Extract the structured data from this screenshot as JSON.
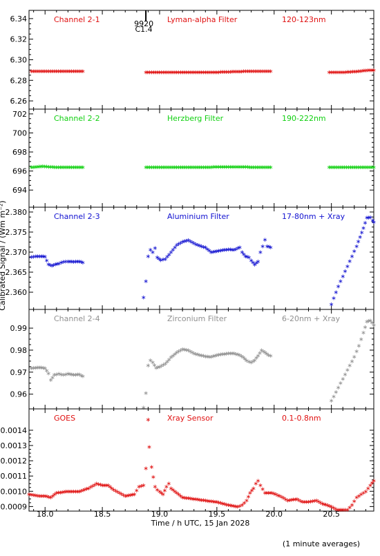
{
  "chart_data": {
    "type": "scatter",
    "xlabel": "Time / h UTC, 15 Jan 2028",
    "ylabel": "Calibrated Signal / (Wm m⁻²)",
    "footnote": "(1 minute averages)",
    "xlim": [
      17.86,
      20.87
    ],
    "xticks": [
      18.0,
      18.5,
      19.0,
      19.5,
      20.0,
      20.5
    ],
    "xtick_labels": [
      "18.0",
      "18.5",
      "19.0",
      "19.5",
      "20.0",
      "20.5"
    ],
    "marker": {
      "x": 18.88,
      "label_top": "9920",
      "label_bottom": "C1.4"
    },
    "panels": [
      {
        "name": "Channel 2-1",
        "filter": "Lyman-alpha Filter",
        "band": "120-123nm",
        "color": "#e01010",
        "ylim": [
          6.252,
          6.348
        ],
        "yticks": [
          6.26,
          6.28,
          6.3,
          6.32,
          6.34
        ],
        "ytick_labels": [
          "6.26",
          "6.28",
          "6.30",
          "6.32",
          "6.34"
        ],
        "segments": [
          {
            "points": [
              [
                17.88,
                6.289
              ],
              [
                18.1,
                6.289
              ],
              [
                18.33,
                6.289
              ]
            ]
          },
          {
            "points": [
              [
                18.88,
                6.288
              ],
              [
                19.2,
                6.288
              ],
              [
                19.5,
                6.288
              ],
              [
                19.8,
                6.289
              ],
              [
                19.97,
                6.289
              ]
            ]
          },
          {
            "points": [
              [
                20.48,
                6.288
              ],
              [
                20.62,
                6.288
              ],
              [
                20.75,
                6.289
              ],
              [
                20.82,
                6.29
              ],
              [
                20.87,
                6.29
              ]
            ]
          }
        ]
      },
      {
        "name": "Channel 2-2",
        "filter": "Herzberg Filter",
        "band": "190-222nm",
        "color": "#10d010",
        "ylim": [
          692.2,
          702.5
        ],
        "yticks": [
          694,
          696,
          698,
          700,
          702
        ],
        "ytick_labels": [
          "694",
          "696",
          "698",
          "700",
          "702"
        ],
        "segments": [
          {
            "points": [
              [
                17.88,
                696.4
              ],
              [
                17.98,
                696.5
              ],
              [
                18.1,
                696.4
              ],
              [
                18.33,
                696.4
              ]
            ]
          },
          {
            "points": [
              [
                18.88,
                696.4
              ],
              [
                19.3,
                696.4
              ],
              [
                19.6,
                696.45
              ],
              [
                19.97,
                696.4
              ]
            ]
          },
          {
            "points": [
              [
                20.48,
                696.4
              ],
              [
                20.87,
                696.4
              ]
            ]
          }
        ]
      },
      {
        "name": "Channel 2-3",
        "filter": "Aluminium Filter",
        "band": "17-80nm + Xray",
        "color": "#1010d0",
        "ylim": [
          2.3557,
          2.3812
        ],
        "yticks": [
          2.36,
          2.365,
          2.37,
          2.375,
          2.38
        ],
        "ytick_labels": [
          "2.360",
          "2.365",
          "2.370",
          "2.375",
          "2.380"
        ],
        "segments": [
          {
            "points": [
              [
                17.88,
                2.3688
              ],
              [
                17.92,
                2.369
              ],
              [
                17.97,
                2.369
              ],
              [
                18.0,
                2.3689
              ],
              [
                18.03,
                2.367
              ],
              [
                18.06,
                2.3666
              ],
              [
                18.09,
                2.367
              ],
              [
                18.12,
                2.3672
              ],
              [
                18.16,
                2.3676
              ],
              [
                18.2,
                2.3677
              ],
              [
                18.25,
                2.3676
              ],
              [
                18.3,
                2.3677
              ],
              [
                18.33,
                2.3674
              ]
            ]
          },
          {
            "points": [
              [
                18.86,
                2.3587
              ],
              [
                18.88,
                2.3628
              ],
              [
                18.9,
                2.369
              ],
              [
                18.92,
                2.3706
              ],
              [
                18.94,
                2.37
              ],
              [
                18.96,
                2.371
              ],
              [
                18.98,
                2.3687
              ],
              [
                19.01,
                2.368
              ],
              [
                19.05,
                2.3683
              ],
              [
                19.1,
                2.37
              ],
              [
                19.15,
                2.3718
              ],
              [
                19.2,
                2.3726
              ],
              [
                19.25,
                2.373
              ],
              [
                19.3,
                2.3722
              ],
              [
                19.35,
                2.3716
              ],
              [
                19.4,
                2.3712
              ],
              [
                19.45,
                2.37
              ],
              [
                19.5,
                2.3703
              ],
              [
                19.55,
                2.3705
              ],
              [
                19.6,
                2.3707
              ],
              [
                19.65,
                2.3706
              ],
              [
                19.7,
                2.3712
              ],
              [
                19.72,
                2.37
              ],
              [
                19.75,
                2.369
              ],
              [
                19.78,
                2.3687
              ],
              [
                19.8,
                2.3679
              ],
              [
                19.83,
                2.3669
              ],
              [
                19.86,
                2.3677
              ],
              [
                19.88,
                2.37
              ],
              [
                19.9,
                2.3715
              ],
              [
                19.92,
                2.3731
              ],
              [
                19.94,
                2.3715
              ],
              [
                19.97,
                2.3712
              ]
            ]
          },
          {
            "points": [
              [
                20.48,
                2.3554
              ],
              [
                20.52,
                2.3585
              ],
              [
                20.56,
                2.3615
              ],
              [
                20.6,
                2.364
              ],
              [
                20.64,
                2.3665
              ],
              [
                20.68,
                2.369
              ],
              [
                20.72,
                2.3715
              ],
              [
                20.75,
                2.3738
              ],
              [
                20.78,
                2.376
              ],
              [
                20.81,
                2.3786
              ],
              [
                20.84,
                2.3787
              ],
              [
                20.86,
                2.3779
              ],
              [
                20.87,
                2.3775
              ]
            ]
          }
        ]
      },
      {
        "name": "Channel 2-4",
        "filter": "Zirconium Filter",
        "band": "6-20nm + Xray",
        "color": "#909090",
        "ylim": [
          0.9533,
          0.9985
        ],
        "yticks": [
          0.96,
          0.97,
          0.98,
          0.99
        ],
        "ytick_labels": [
          "0.96",
          "0.97",
          "0.98",
          "0.99"
        ],
        "segments": [
          {
            "points": [
              [
                17.88,
                0.9718
              ],
              [
                17.95,
                0.9722
              ],
              [
                18.0,
                0.9718
              ],
              [
                18.03,
                0.9695
              ],
              [
                18.05,
                0.9665
              ],
              [
                18.08,
                0.9688
              ],
              [
                18.12,
                0.9693
              ],
              [
                18.16,
                0.9688
              ],
              [
                18.2,
                0.9693
              ],
              [
                18.25,
                0.9688
              ],
              [
                18.3,
                0.969
              ],
              [
                18.33,
                0.9682
              ]
            ]
          },
          {
            "points": [
              [
                18.86,
                0.954
              ],
              [
                18.88,
                0.9605
              ],
              [
                18.9,
                0.973
              ],
              [
                18.92,
                0.9755
              ],
              [
                18.94,
                0.9745
              ],
              [
                18.97,
                0.972
              ],
              [
                19.0,
                0.9725
              ],
              [
                19.05,
                0.9738
              ],
              [
                19.1,
                0.9768
              ],
              [
                19.15,
                0.979
              ],
              [
                19.2,
                0.9805
              ],
              [
                19.25,
                0.98
              ],
              [
                19.3,
                0.9785
              ],
              [
                19.35,
                0.9778
              ],
              [
                19.4,
                0.9772
              ],
              [
                19.45,
                0.977
              ],
              [
                19.5,
                0.9778
              ],
              [
                19.55,
                0.9782
              ],
              [
                19.6,
                0.9785
              ],
              [
                19.65,
                0.9785
              ],
              [
                19.7,
                0.9778
              ],
              [
                19.73,
                0.9768
              ],
              [
                19.76,
                0.9752
              ],
              [
                19.8,
                0.9745
              ],
              [
                19.83,
                0.9755
              ],
              [
                19.86,
                0.9775
              ],
              [
                19.89,
                0.98
              ],
              [
                19.92,
                0.979
              ],
              [
                19.95,
                0.9778
              ],
              [
                19.97,
                0.9775
              ]
            ]
          },
          {
            "points": [
              [
                20.5,
                0.957
              ],
              [
                20.54,
                0.961
              ],
              [
                20.58,
                0.965
              ],
              [
                20.62,
                0.969
              ],
              [
                20.66,
                0.973
              ],
              [
                20.7,
                0.977
              ],
              [
                20.74,
                0.982
              ],
              [
                20.78,
                0.988
              ],
              [
                20.81,
                0.993
              ],
              [
                20.84,
                0.9935
              ],
              [
                20.87,
                0.9915
              ]
            ]
          }
        ]
      },
      {
        "name": "GOES",
        "filter": "Xray Sensor",
        "band": "0.1-0.8nm",
        "color": "#e01010",
        "ylim": [
          0.00087,
          0.00154
        ],
        "yticks": [
          0.0009,
          0.001,
          0.0011,
          0.0012,
          0.0013,
          0.0014
        ],
        "ytick_labels": [
          "0.0009",
          "0.0010",
          "0.0011",
          "0.0012",
          "0.0013",
          "0.0014"
        ],
        "segments": [
          {
            "points": [
              [
                17.86,
                0.00098
              ],
              [
                17.95,
                0.00097
              ],
              [
                18.0,
                0.00097
              ],
              [
                18.05,
                0.00096
              ],
              [
                18.1,
                0.00099
              ],
              [
                18.2,
                0.001
              ],
              [
                18.3,
                0.001
              ],
              [
                18.38,
                0.00102
              ],
              [
                18.45,
                0.00105
              ],
              [
                18.5,
                0.00104
              ],
              [
                18.55,
                0.00104
              ],
              [
                18.6,
                0.00101
              ],
              [
                18.7,
                0.00097
              ],
              [
                18.78,
                0.00098
              ],
              [
                18.82,
                0.00103
              ],
              [
                18.86,
                0.00104
              ],
              [
                18.88,
                0.00115
              ],
              [
                18.9,
                0.00147
              ],
              [
                18.91,
                0.00129
              ],
              [
                18.93,
                0.00116
              ],
              [
                18.96,
                0.00103
              ],
              [
                18.98,
                0.00101
              ],
              [
                19.0,
                0.001
              ],
              [
                19.03,
                0.00098
              ],
              [
                19.06,
                0.00103
              ],
              [
                19.08,
                0.00105
              ],
              [
                19.1,
                0.00102
              ],
              [
                19.15,
                0.00099
              ],
              [
                19.2,
                0.00096
              ],
              [
                19.3,
                0.00095
              ],
              [
                19.4,
                0.00094
              ],
              [
                19.5,
                0.00093
              ],
              [
                19.6,
                0.00091
              ],
              [
                19.68,
                0.0009
              ],
              [
                19.72,
                0.00091
              ],
              [
                19.76,
                0.00094
              ],
              [
                19.79,
                0.00099
              ],
              [
                19.82,
                0.00102
              ],
              [
                19.84,
                0.00105
              ],
              [
                19.86,
                0.00107
              ],
              [
                19.88,
                0.00104
              ],
              [
                19.92,
                0.00099
              ],
              [
                19.98,
                0.00099
              ],
              [
                20.05,
                0.00097
              ],
              [
                20.12,
                0.00094
              ],
              [
                20.2,
                0.00095
              ],
              [
                20.25,
                0.00093
              ],
              [
                20.3,
                0.00093
              ],
              [
                20.37,
                0.00094
              ],
              [
                20.42,
                0.00092
              ],
              [
                20.5,
                0.0009
              ],
              [
                20.55,
                0.00088
              ],
              [
                20.6,
                0.00088
              ],
              [
                20.64,
                0.00088
              ],
              [
                20.68,
                0.00091
              ],
              [
                20.72,
                0.00096
              ],
              [
                20.76,
                0.00098
              ],
              [
                20.8,
                0.001
              ],
              [
                20.84,
                0.00104
              ],
              [
                20.87,
                0.00107
              ]
            ]
          }
        ]
      }
    ]
  }
}
